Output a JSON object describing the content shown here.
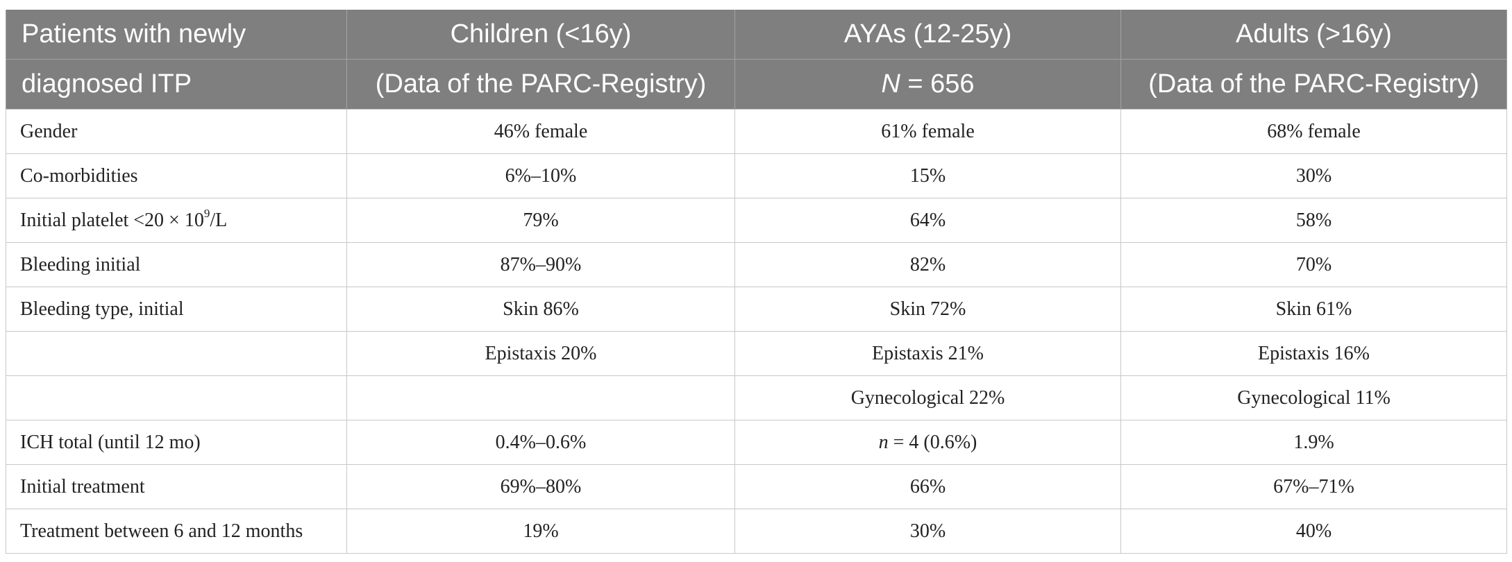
{
  "header": {
    "row1": {
      "col0": "Patients with newly",
      "col1": "Children (<16y)",
      "col2": "AYAs (12-25y)",
      "col3": "Adults (>16y)"
    },
    "row2": {
      "col0": "diagnosed ITP",
      "col1": "(Data of the PARC-Registry)",
      "col2_var": "N",
      "col2_rest": " = 656",
      "col3": "(Data of the PARC-Registry)"
    }
  },
  "rows": [
    {
      "label": "Gender",
      "children": "46% female",
      "ayas": "61% female",
      "adults": "68% female"
    },
    {
      "label": "Co-morbidities",
      "children": "6%–10%",
      "ayas": "15%",
      "adults": "30%"
    },
    {
      "label_pre": "Initial platelet <20 × 10",
      "label_sup": "9",
      "label_post": "/L",
      "children": "79%",
      "ayas": "64%",
      "adults": "58%"
    },
    {
      "label": "Bleeding initial",
      "children": "87%–90%",
      "ayas": "82%",
      "adults": "70%"
    },
    {
      "label": "Bleeding type, initial",
      "children": "Skin 86%",
      "ayas": "Skin 72%",
      "adults": "Skin 61%"
    },
    {
      "label": "",
      "children": "Epistaxis 20%",
      "ayas": "Epistaxis 21%",
      "adults": "Epistaxis 16%"
    },
    {
      "label": "",
      "children": "",
      "ayas": "Gynecological 22%",
      "adults": "Gynecological 11%"
    },
    {
      "label": "ICH total (until 12 mo)",
      "children": "0.4%–0.6%",
      "ayas_var": "n",
      "ayas_rest": " = 4 (0.6%)",
      "adults": "1.9%"
    },
    {
      "label": "Initial treatment",
      "children": "69%–80%",
      "ayas": "66%",
      "adults": "67%–71%"
    },
    {
      "label": "Treatment between 6 and 12 months",
      "children": "19%",
      "ayas": "30%",
      "adults": "40%"
    }
  ]
}
